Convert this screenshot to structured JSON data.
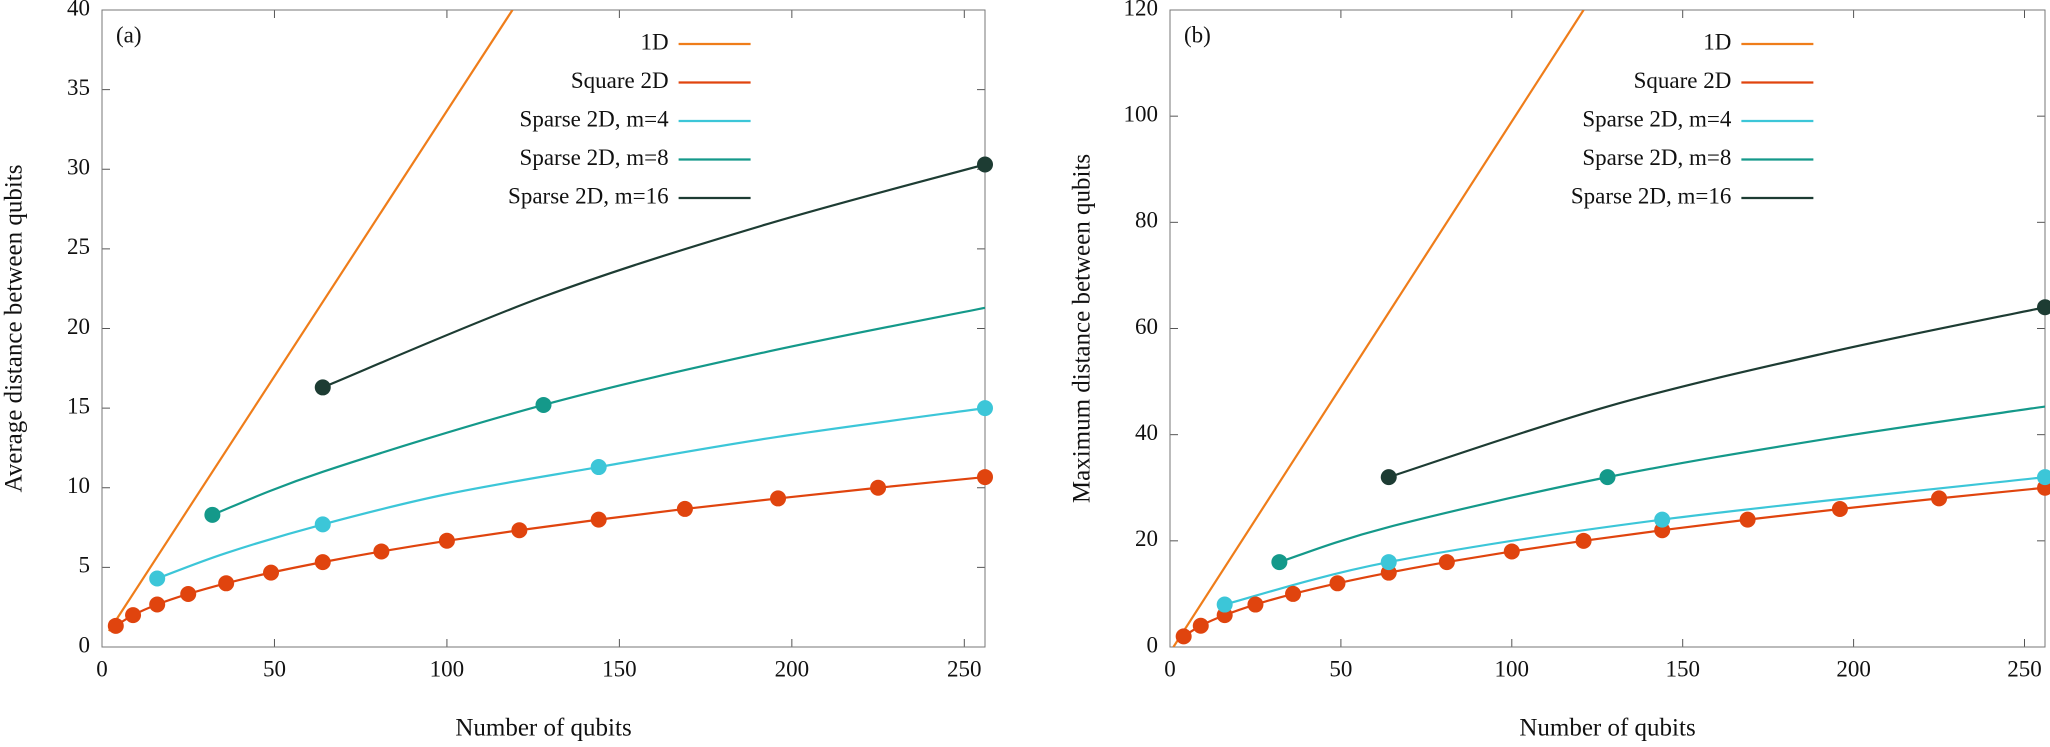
{
  "chart_data": [
    {
      "type": "line",
      "panel_label": "(a)",
      "xlabel": "Number of qubits",
      "ylabel": "Average distance between qubits",
      "xlim": [
        0,
        256
      ],
      "ylim": [
        0,
        40
      ],
      "xticks": [
        0,
        50,
        100,
        150,
        200,
        250
      ],
      "yticks": [
        0,
        5,
        10,
        15,
        20,
        25,
        30,
        35,
        40
      ],
      "series": [
        {
          "name": "1D",
          "color": "#ef7d1a",
          "x": [
            2,
            119
          ],
          "values": [
            1,
            40
          ]
        },
        {
          "name": "Square 2D",
          "color": "#e0440e",
          "markers": true,
          "x": [
            4,
            9,
            16,
            25,
            36,
            49,
            64,
            81,
            100,
            121,
            144,
            169,
            196,
            225,
            256
          ],
          "values": [
            1.33,
            2,
            2.67,
            3.33,
            4,
            4.67,
            5.33,
            6,
            6.67,
            7.33,
            8,
            8.67,
            9.33,
            10,
            10.67
          ]
        },
        {
          "name": "Sparse 2D, m=4",
          "color": "#3cc6d8",
          "x": [
            16,
            36,
            64,
            100,
            144,
            196,
            256
          ],
          "values": [
            4.3,
            5.9,
            7.7,
            9.6,
            11.3,
            13.2,
            15.0
          ],
          "markers": {
            "x": [
              16,
              64,
              144,
              256
            ],
            "values": [
              4.3,
              7.7,
              11.3,
              15.0
            ]
          }
        },
        {
          "name": "Sparse 2D, m=8",
          "color": "#14998a",
          "x": [
            32,
            64,
            128,
            192,
            256
          ],
          "values": [
            8.3,
            11.0,
            15.2,
            18.5,
            21.3
          ],
          "markers": {
            "x": [
              32,
              128
            ],
            "values": [
              8.3,
              15.2
            ]
          }
        },
        {
          "name": "Sparse 2D, m=16",
          "color": "#1d3c33",
          "x": [
            64,
            128,
            192,
            256
          ],
          "values": [
            16.3,
            22.0,
            26.5,
            30.3
          ],
          "markers": {
            "x": [
              64,
              256
            ],
            "values": [
              16.3,
              30.3
            ]
          }
        }
      ]
    },
    {
      "type": "line",
      "panel_label": "(b)",
      "xlabel": "Number of qubits",
      "ylabel": "Maximum distance between qubits",
      "xlim": [
        0,
        256
      ],
      "ylim": [
        0,
        120
      ],
      "xticks": [
        0,
        50,
        100,
        150,
        200,
        250
      ],
      "yticks": [
        0,
        20,
        40,
        60,
        80,
        100,
        120
      ],
      "series": [
        {
          "name": "1D",
          "color": "#ef7d1a",
          "x": [
            1,
            121
          ],
          "values": [
            0,
            120
          ]
        },
        {
          "name": "Square 2D",
          "color": "#e0440e",
          "markers": true,
          "x": [
            4,
            9,
            16,
            25,
            36,
            49,
            64,
            81,
            100,
            121,
            144,
            169,
            196,
            225,
            256
          ],
          "values": [
            2,
            4,
            6,
            8,
            10,
            12,
            14,
            16,
            18,
            20,
            22,
            24,
            26,
            28,
            30
          ]
        },
        {
          "name": "Sparse 2D, m=4",
          "color": "#3cc6d8",
          "x": [
            16,
            64,
            144,
            256
          ],
          "values": [
            8,
            16,
            24,
            32
          ],
          "markers": {
            "x": [
              16,
              64,
              144,
              256
            ],
            "values": [
              8,
              16,
              24,
              32
            ]
          }
        },
        {
          "name": "Sparse 2D, m=8",
          "color": "#14998a",
          "x": [
            32,
            64,
            128,
            192,
            256
          ],
          "values": [
            16,
            22.6,
            32,
            39.2,
            45.3
          ],
          "markers": {
            "x": [
              32,
              128
            ],
            "values": [
              16,
              32
            ]
          }
        },
        {
          "name": "Sparse 2D, m=16",
          "color": "#1d3c33",
          "x": [
            64,
            128,
            192,
            256
          ],
          "values": [
            32,
            45.3,
            55.4,
            64
          ],
          "markers": {
            "x": [
              64,
              256
            ],
            "values": [
              32,
              64
            ]
          }
        }
      ]
    }
  ]
}
